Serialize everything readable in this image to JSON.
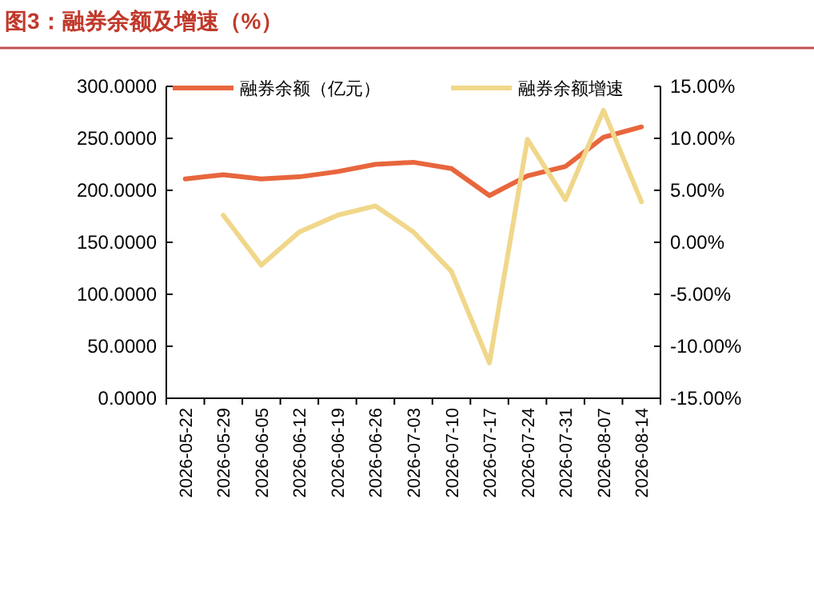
{
  "chart_data": {
    "type": "line",
    "title": "图3：融券余额及增速（%）",
    "categories": [
      "2026-05-22",
      "2026-05-29",
      "2026-06-05",
      "2026-06-12",
      "2026-06-19",
      "2026-06-26",
      "2026-07-03",
      "2026-07-10",
      "2026-07-17",
      "2026-07-24",
      "2026-07-31",
      "2026-08-07",
      "2026-08-14"
    ],
    "series": [
      {
        "name": "融券余额（亿元）",
        "color": "#e8663d",
        "values": [
          211,
          215,
          211,
          213,
          218,
          225,
          227,
          221,
          195,
          214,
          223,
          251,
          261
        ]
      },
      {
        "name": "融券余额增速",
        "color": "#f0d78a",
        "axis": "y2",
        "values": [
          null,
          2.6,
          -2.2,
          1.0,
          2.6,
          3.5,
          1.0,
          -2.8,
          -11.6,
          9.9,
          4.1,
          12.7,
          3.9
        ]
      }
    ],
    "ylim": [
      0,
      300
    ],
    "yticks": [
      {
        "value": 0,
        "label": "0.0000"
      },
      {
        "value": 50,
        "label": "50.0000"
      },
      {
        "value": 100,
        "label": "100.0000"
      },
      {
        "value": 150,
        "label": "150.0000"
      },
      {
        "value": 200,
        "label": "200.0000"
      },
      {
        "value": 250,
        "label": "250.0000"
      },
      {
        "value": 300,
        "label": "300.0000"
      }
    ],
    "y2lim": [
      -15,
      15
    ],
    "y2ticks": [
      {
        "value": -15,
        "label": "-15.00%"
      },
      {
        "value": -10,
        "label": "-10.00%"
      },
      {
        "value": -5,
        "label": "-5.00%"
      },
      {
        "value": 0,
        "label": "0.00%"
      },
      {
        "value": 5,
        "label": "5.00%"
      },
      {
        "value": 10,
        "label": "10.00%"
      },
      {
        "value": 15,
        "label": "15.00%"
      }
    ],
    "grid": false,
    "legend": "top"
  }
}
